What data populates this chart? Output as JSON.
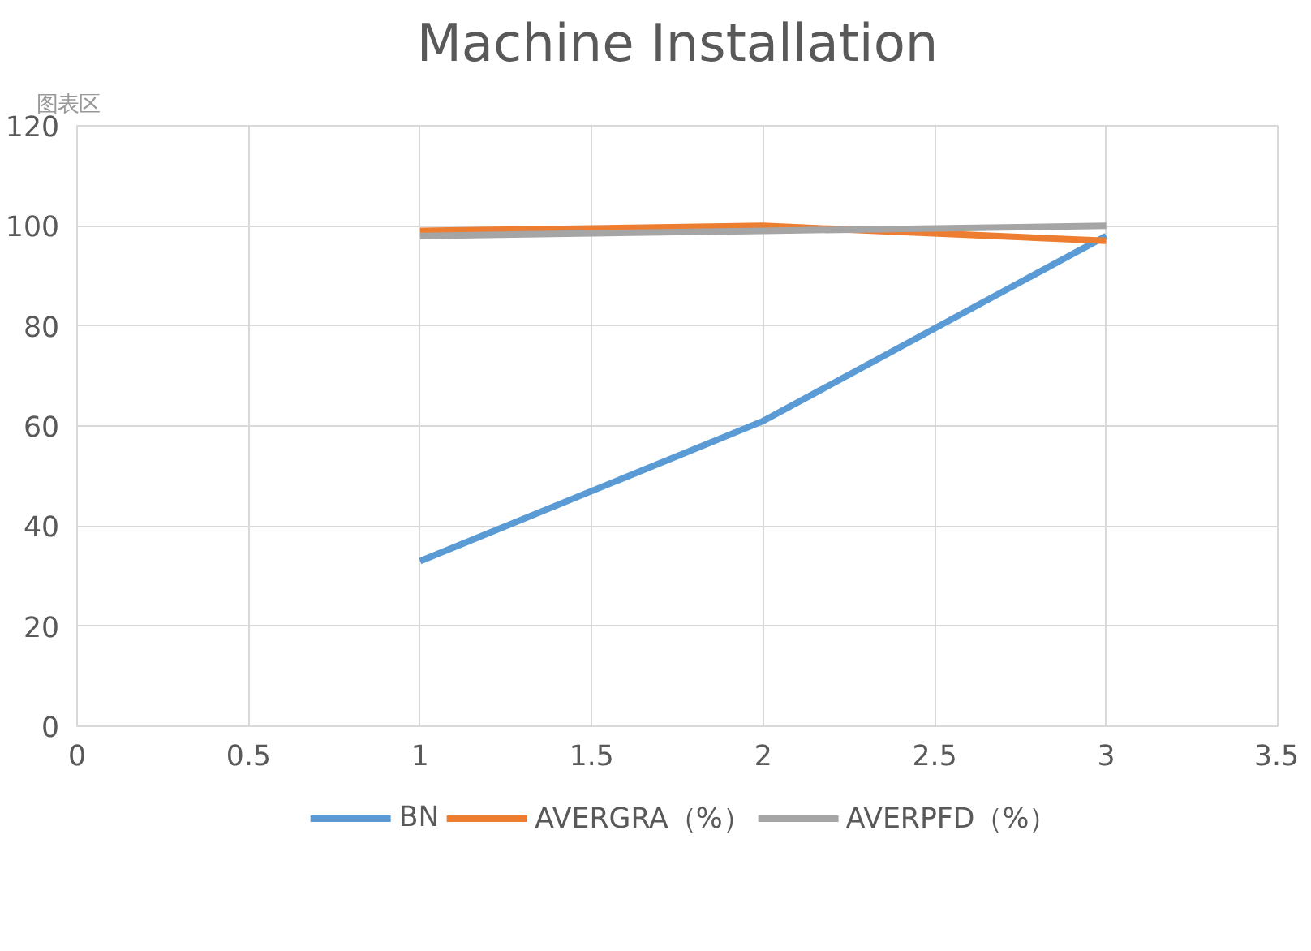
{
  "chart_data": {
    "type": "line",
    "title": "Machine Installation",
    "x": [
      1,
      2,
      3
    ],
    "series": [
      {
        "name": "BN",
        "color": "#5b9bd5",
        "values": [
          33,
          61,
          98
        ]
      },
      {
        "name": "AVERGRA（%）",
        "color": "#ed7d31",
        "values": [
          99,
          100,
          97
        ]
      },
      {
        "name": "AVERPFD（%）",
        "color": "#a5a5a5",
        "values": [
          98,
          99,
          100
        ]
      }
    ],
    "xlim": [
      0,
      3.5
    ],
    "xticks": [
      0,
      0.5,
      1,
      1.5,
      2,
      2.5,
      3,
      3.5
    ],
    "ylim": [
      0,
      120
    ],
    "yticks": [
      0,
      20,
      40,
      60,
      80,
      100,
      120
    ],
    "grid": true,
    "legend": "bottom",
    "marker": "none",
    "line_style": "solid",
    "annotations": [
      "图表区"
    ]
  }
}
